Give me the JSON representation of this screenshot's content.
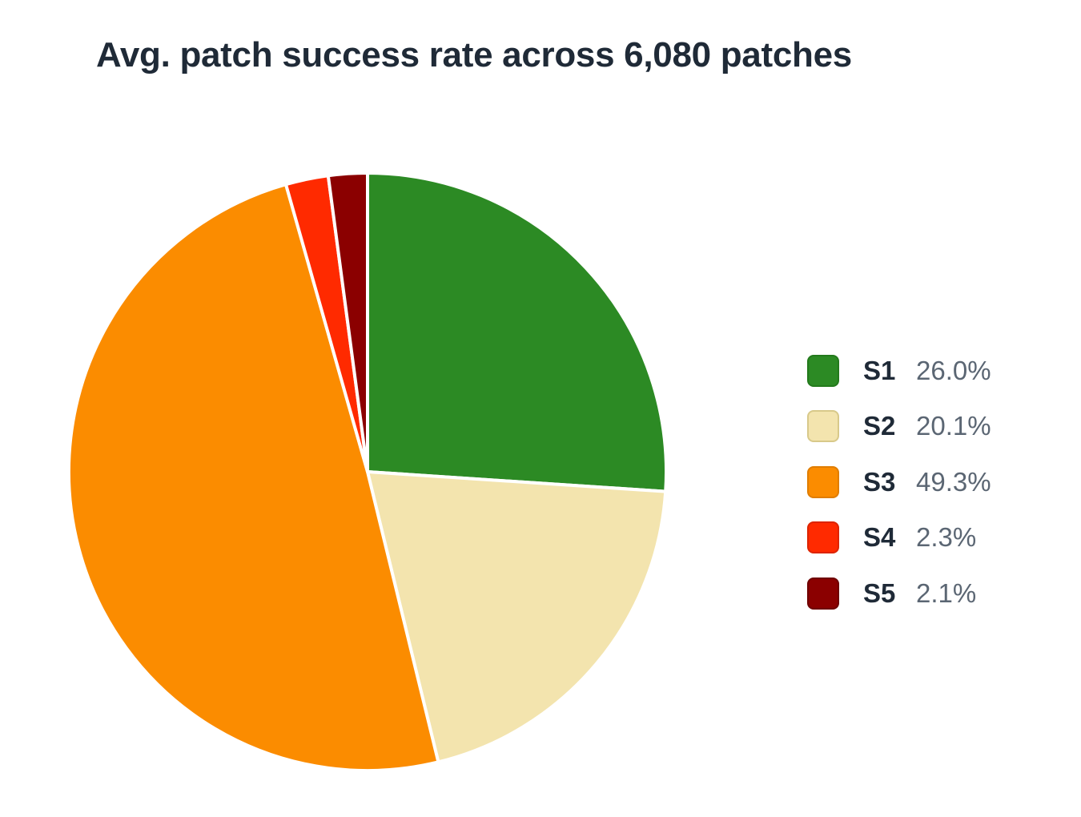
{
  "chart_data": {
    "type": "pie",
    "title": "Avg. patch success rate across 6,080 patches",
    "legend_position": "right",
    "slices": [
      {
        "label": "S1",
        "value": 26.0,
        "value_label": "26.0%",
        "color": "#2c8a24",
        "border": "#237a1c"
      },
      {
        "label": "S2",
        "value": 20.1,
        "value_label": "20.1%",
        "color": "#f3e4ae",
        "border": "#d8c98a"
      },
      {
        "label": "S3",
        "value": 49.3,
        "value_label": "49.3%",
        "color": "#fb8c00",
        "border": "#e07d00"
      },
      {
        "label": "S4",
        "value": 2.3,
        "value_label": "2.3%",
        "color": "#ff2a00",
        "border": "#dd2400"
      },
      {
        "label": "S5",
        "value": 2.1,
        "value_label": "2.1%",
        "color": "#8b0000",
        "border": "#6e0000"
      }
    ]
  }
}
